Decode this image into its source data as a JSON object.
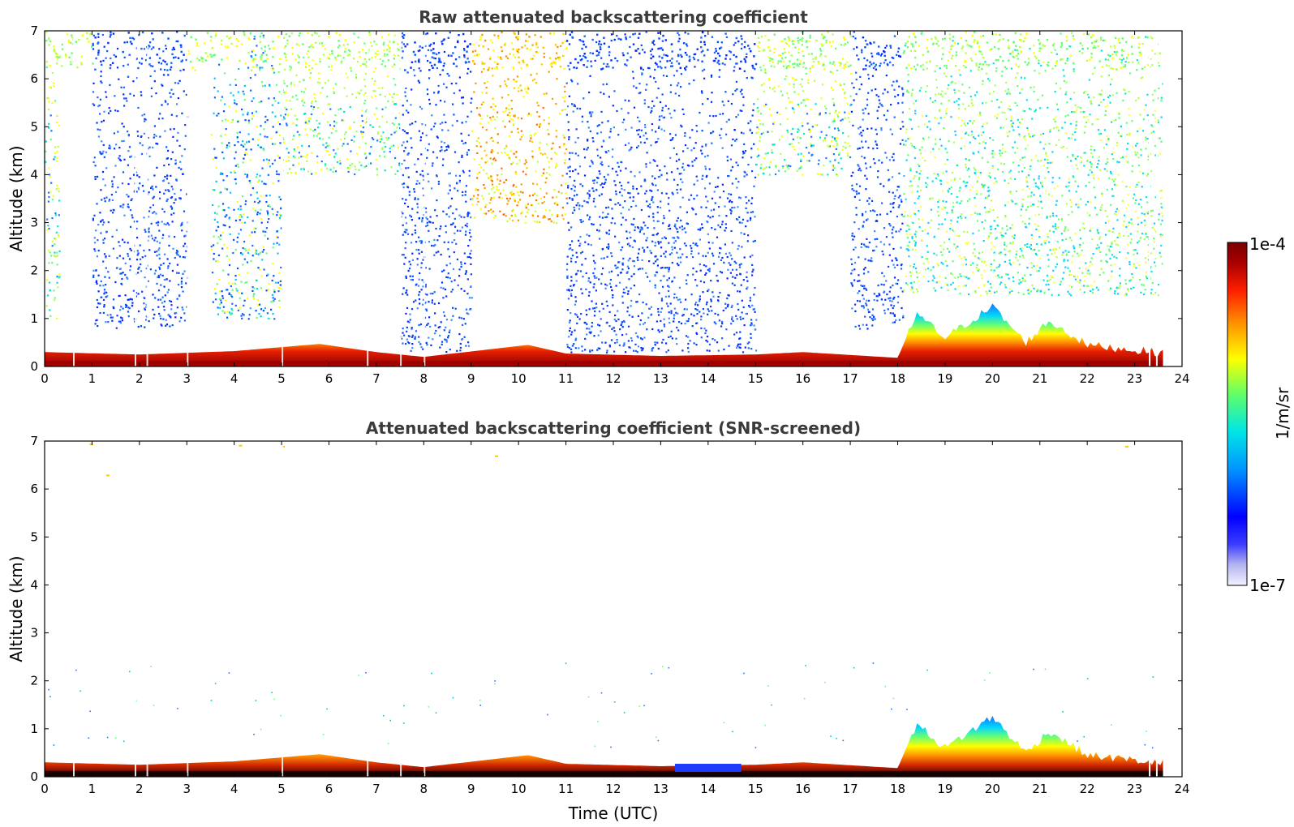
{
  "chart_data": [
    {
      "type": "heatmap",
      "title": "Raw attenuated backscattering coefficient",
      "xlabel": "",
      "ylabel": "Altitude (km)",
      "xlim": [
        0,
        24
      ],
      "ylim": [
        0,
        7
      ],
      "xticks": [
        "0",
        "1",
        "2",
        "3",
        "4",
        "5",
        "6",
        "7",
        "8",
        "9",
        "10",
        "11",
        "12",
        "13",
        "14",
        "15",
        "16",
        "17",
        "18",
        "19",
        "20",
        "21",
        "22",
        "23",
        "24"
      ],
      "yticks": [
        "0",
        "1",
        "2",
        "3",
        "4",
        "5",
        "6",
        "7"
      ],
      "x_units": "hours UTC",
      "y_units": "km",
      "colorscale": "jet",
      "data_end_hour": 23.6,
      "boundary_layer_top_km": [
        {
          "time": 0,
          "top": 0.3
        },
        {
          "time": 2,
          "top": 0.25
        },
        {
          "time": 4,
          "top": 0.32
        },
        {
          "time": 5.8,
          "top": 0.47
        },
        {
          "time": 7,
          "top": 0.3
        },
        {
          "time": 8,
          "top": 0.2
        },
        {
          "time": 10.2,
          "top": 0.45
        },
        {
          "time": 11,
          "top": 0.27
        },
        {
          "time": 13,
          "top": 0.22
        },
        {
          "time": 15,
          "top": 0.25
        },
        {
          "time": 16,
          "top": 0.3
        },
        {
          "time": 18,
          "top": 0.18
        },
        {
          "time": 18.4,
          "top": 1.1
        },
        {
          "time": 19,
          "top": 0.6
        },
        {
          "time": 20,
          "top": 1.25
        },
        {
          "time": 20.7,
          "top": 0.5
        },
        {
          "time": 21.2,
          "top": 0.95
        },
        {
          "time": 22,
          "top": 0.45
        },
        {
          "time": 23.6,
          "top": 0.28
        }
      ],
      "noise_segments": [
        {
          "from": 0.0,
          "to": 0.3,
          "min_km": 1.0,
          "level": "yellow-green"
        },
        {
          "from": 1.0,
          "to": 3.0,
          "min_km": 0.8,
          "level": "blue"
        },
        {
          "from": 3.5,
          "to": 5.0,
          "min_km": 1.0,
          "level": "mixed"
        },
        {
          "from": 5.0,
          "to": 7.5,
          "min_km": 4.0,
          "level": "yellow-green"
        },
        {
          "from": 7.5,
          "to": 9.0,
          "min_km": 0.3,
          "level": "blue"
        },
        {
          "from": 9.0,
          "to": 11.0,
          "min_km": 3.0,
          "level": "yellow-orange"
        },
        {
          "from": 11.0,
          "to": 15.0,
          "min_km": 0.3,
          "level": "blue"
        },
        {
          "from": 15.0,
          "to": 17.0,
          "min_km": 4.0,
          "level": "yellow-green"
        },
        {
          "from": 17.0,
          "to": 18.1,
          "min_km": 0.8,
          "level": "blue"
        },
        {
          "from": 18.1,
          "to": 23.6,
          "min_km": 1.5,
          "level": "green-cyan"
        }
      ]
    },
    {
      "type": "heatmap",
      "title": "Attenuated backscattering coefficient (SNR-screened)",
      "xlabel": "Time (UTC)",
      "ylabel": "Altitude (km)",
      "xlim": [
        0,
        24
      ],
      "ylim": [
        0,
        7
      ],
      "xticks": [
        "0",
        "1",
        "2",
        "3",
        "4",
        "5",
        "6",
        "7",
        "8",
        "9",
        "10",
        "11",
        "12",
        "13",
        "14",
        "15",
        "16",
        "17",
        "18",
        "19",
        "20",
        "21",
        "22",
        "23",
        "24"
      ],
      "yticks": [
        "0",
        "1",
        "2",
        "3",
        "4",
        "5",
        "6",
        "7"
      ],
      "x_units": "hours UTC",
      "y_units": "km",
      "colorscale": "jet",
      "data_end_hour": 23.6
    }
  ],
  "colorbar": {
    "max_label": "1e-4",
    "min_label": "1e-7",
    "unit_label": "1/m/sr",
    "stops": [
      "#f2f2ff",
      "#b4b4f0",
      "#0000ff",
      "#0096ff",
      "#00e6e6",
      "#64ff64",
      "#ffff00",
      "#ff9600",
      "#ff1e00",
      "#aa0000",
      "#780000"
    ]
  }
}
